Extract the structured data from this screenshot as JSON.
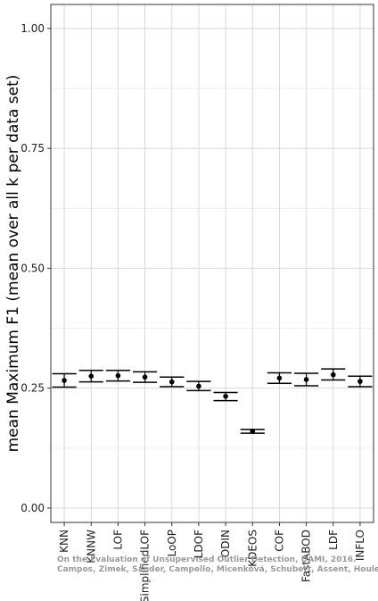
{
  "chart_data": {
    "type": "scatter",
    "title": "",
    "xlabel": "",
    "ylabel": "mean Maximum F1 (mean over all k per data set)",
    "ylim": [
      -0.03,
      1.05
    ],
    "yticks": [
      0.0,
      0.25,
      0.5,
      0.75,
      1.0
    ],
    "ytick_labels": [
      "0.00",
      "0.25",
      "0.50",
      "0.75",
      "1.00"
    ],
    "grid": true,
    "categories": [
      "KNN",
      "KNNW",
      "LOF",
      "SimplifiedLOF",
      "LoOP",
      "LDOF",
      "ODIN",
      "KDEOS",
      "COF",
      "FastABOD",
      "LDF",
      "INFLO"
    ],
    "series": [
      {
        "values": [
          0.266,
          0.275,
          0.276,
          0.273,
          0.263,
          0.254,
          0.233,
          0.16,
          0.271,
          0.268,
          0.278,
          0.264
        ],
        "lower": [
          0.252,
          0.263,
          0.265,
          0.262,
          0.253,
          0.245,
          0.224,
          0.156,
          0.26,
          0.255,
          0.267,
          0.253
        ],
        "upper": [
          0.28,
          0.287,
          0.287,
          0.284,
          0.273,
          0.264,
          0.241,
          0.164,
          0.282,
          0.281,
          0.29,
          0.275
        ]
      }
    ]
  },
  "watermark": {
    "line1": "On the Evaluation of Unsupervised Outlier Detection, DAMI, 2016.",
    "line2": "Campos, Zimek, Sander, Campello, Micenková, Schubert, Assent, Houle"
  }
}
